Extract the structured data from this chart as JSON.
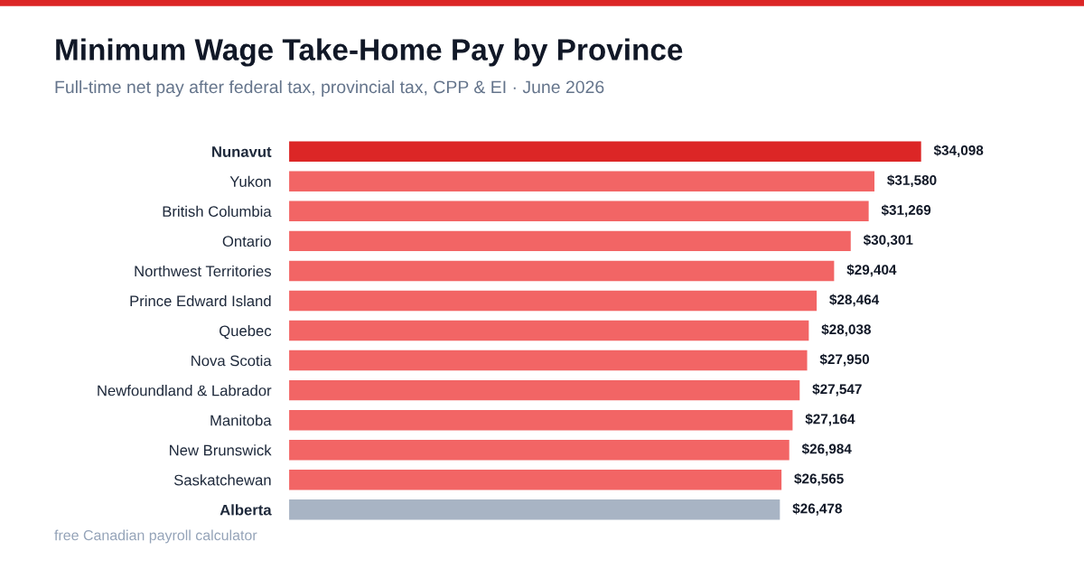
{
  "chart_data": {
    "type": "bar",
    "orientation": "horizontal",
    "title": "Minimum Wage Take-Home Pay by Province",
    "subtitle": "Full-time net pay after federal tax, provincial tax, CPP & EI · June 2026",
    "categories": [
      "Nunavut",
      "Yukon",
      "British Columbia",
      "Ontario",
      "Northwest Territories",
      "Prince Edward Island",
      "Quebec",
      "Nova Scotia",
      "Newfoundland & Labrador",
      "Manitoba",
      "New Brunswick",
      "Saskatchewan",
      "Alberta"
    ],
    "values": [
      34098,
      31580,
      31269,
      30301,
      29404,
      28464,
      28038,
      27950,
      27547,
      27164,
      26984,
      26565,
      26478
    ],
    "colors": [
      "#dc2626",
      "#f26565",
      "#f26565",
      "#f26565",
      "#f26565",
      "#f26565",
      "#f26565",
      "#f26565",
      "#f26565",
      "#f26565",
      "#f26565",
      "#f26565",
      "#a8b4c4"
    ],
    "value_labels": [
      "$34,098",
      "$31,580",
      "$31,269",
      "$30,301",
      "$29,404",
      "$28,464",
      "$28,038",
      "$27,950",
      "$27,547",
      "$27,164",
      "$26,984",
      "$26,565",
      "$26,478"
    ],
    "annotations": [
      "free Canadian payroll calculator"
    ],
    "grid": false,
    "legend": false
  }
}
